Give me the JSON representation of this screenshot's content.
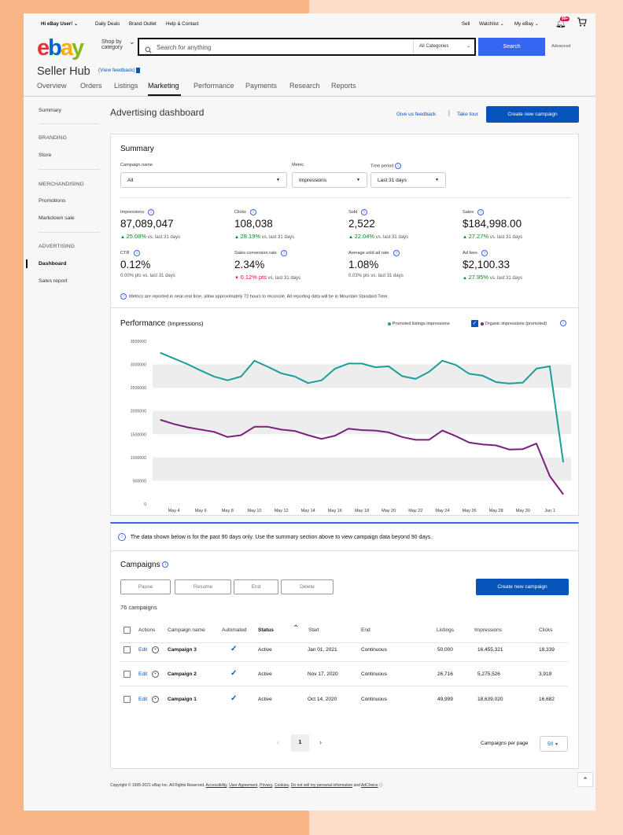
{
  "topnav": {
    "greeting": "Hi eBay User!",
    "daily_deals": "Daily Deals",
    "brand_outlet": "Brand Outlet",
    "help_contact": "Help & Contact",
    "sell": "Sell",
    "watchlist": "Watchlist",
    "my_ebay": "My eBay",
    "notification_count": "99+"
  },
  "header": {
    "logo": {
      "e": "e",
      "b": "b",
      "a": "a",
      "y": "y"
    },
    "shop_by_line1": "Shop by",
    "shop_by_line2": "category",
    "search_placeholder": "Search for anything",
    "category_select": "All Categories",
    "search_button": "Search",
    "advanced": "Advanced"
  },
  "seller_hub": {
    "title": "Seller Hub",
    "view_feedback": "(View feedback)",
    "tabs": [
      "Overview",
      "Orders",
      "Listings",
      "Marketing",
      "Performance",
      "Payments",
      "Research",
      "Reports"
    ],
    "active_tab": "Marketing"
  },
  "sidebar": {
    "summary": "Summary",
    "branding": "BRANDING",
    "store": "Store",
    "merchandising": "MERCHANDISING",
    "promotions": "Promotions",
    "markdown_sale": "Markdown sale",
    "advertising": "ADVERTISING",
    "dashboard": "Dashboard",
    "sales_report": "Sales report"
  },
  "dashboard": {
    "title": "Advertising dashboard",
    "give_feedback": "Give us feedback",
    "separator": "|",
    "take_tour": "Take tour",
    "create_campaign": "Create new campaign"
  },
  "summary": {
    "title": "Summary",
    "campaign_name_label": "Campaign name",
    "campaign_name_value": "All",
    "metric_label": "Metric",
    "metric_value": "Impressions",
    "time_period_label": "Time period",
    "time_period_value": "Last 31 days",
    "vs_text": "vs. last 31 days",
    "metrics": [
      {
        "label": "Impressions",
        "value": "87,089,047",
        "change": "25.08%",
        "dir": "up",
        "suffix": "vs. last 31 days"
      },
      {
        "label": "Clicks",
        "value": "108,038",
        "change": "28.19%",
        "dir": "up",
        "suffix": "vs. last 31 days"
      },
      {
        "label": "Sold",
        "value": "2,522",
        "change": "22.04%",
        "dir": "up",
        "suffix": "vs. last 31 days"
      },
      {
        "label": "Sales",
        "value": "$184,998.00",
        "change": "27.27%",
        "dir": "up",
        "suffix": "vs. last 31 days"
      },
      {
        "label": "CTR",
        "value": "0.12%",
        "change": "0.00% pts vs. last 31 days",
        "dir": "none",
        "suffix": ""
      },
      {
        "label": "Sales conversion rate",
        "value": "2.34%",
        "change": "0.12% pts",
        "dir": "down",
        "suffix": "vs. last 31 days"
      },
      {
        "label": "Average sold ad rate",
        "value": "1.08%",
        "change": "0.03% pts vs. last 31 days",
        "dir": "none",
        "suffix": ""
      },
      {
        "label": "Ad fees",
        "value": "$2,100.33",
        "change": "27.95%",
        "dir": "up",
        "suffix": "vs. last 31 days"
      }
    ],
    "note": "Metrics are reported in near-real time, allow approximately 72 hours to reconcile. All reporting data will be in Mountain Standard Time."
  },
  "performance": {
    "title": "Performance",
    "subtitle": "(Impressions)",
    "legend_promoted": "Promoted listings impressions",
    "legend_organic": "Organic impressions (promoted)"
  },
  "chart_data": {
    "type": "line",
    "title": "Performance (Impressions)",
    "ylim": [
      0,
      3500000
    ],
    "yticks": [
      "3500000",
      "3000000",
      "2500000",
      "2000000",
      "1500000",
      "1000000",
      "500000",
      "0"
    ],
    "x_tick_labels": [
      "May 4",
      "May 6",
      "May 8",
      "May 10",
      "May 12",
      "May 14",
      "May 16",
      "May 18",
      "May 20",
      "May 22",
      "May 24",
      "May 26",
      "May 28",
      "May 30",
      "Jun 1"
    ],
    "x": [
      "May 3",
      "May 4",
      "May 5",
      "May 6",
      "May 7",
      "May 8",
      "May 9",
      "May 10",
      "May 11",
      "May 12",
      "May 13",
      "May 14",
      "May 15",
      "May 16",
      "May 17",
      "May 18",
      "May 19",
      "May 20",
      "May 21",
      "May 22",
      "May 23",
      "May 24",
      "May 25",
      "May 26",
      "May 27",
      "May 28",
      "May 29",
      "May 30",
      "May 31",
      "Jun 1",
      "Jun 2"
    ],
    "grid": true,
    "legend": "top-right",
    "series": [
      {
        "name": "Promoted listings impressions",
        "color": "#1a9e9a",
        "values": [
          3250000,
          3130000,
          3010000,
          2870000,
          2740000,
          2660000,
          2740000,
          3080000,
          2950000,
          2810000,
          2740000,
          2600000,
          2660000,
          2910000,
          3020000,
          3020000,
          2940000,
          2960000,
          2750000,
          2690000,
          2840000,
          3080000,
          2990000,
          2800000,
          2760000,
          2620000,
          2590000,
          2610000,
          2910000,
          2960000,
          900000
        ]
      },
      {
        "name": "Organic impressions (promoted)",
        "color": "#7d1e7e",
        "values": [
          1810000,
          1720000,
          1650000,
          1600000,
          1550000,
          1440000,
          1480000,
          1660000,
          1660000,
          1600000,
          1570000,
          1480000,
          1400000,
          1470000,
          1620000,
          1590000,
          1580000,
          1540000,
          1440000,
          1380000,
          1380000,
          1580000,
          1460000,
          1320000,
          1280000,
          1260000,
          1170000,
          1180000,
          1300000,
          600000,
          210000
        ]
      }
    ]
  },
  "campaigns_notice": "The data shown below is for the past 90 days only. Use the summary section above to view campaign data beyond 90 days.",
  "campaigns": {
    "title": "Campaigns",
    "actions": {
      "pause": "Pause",
      "resume": "Resume",
      "end": "End",
      "delete": "Delete"
    },
    "create_button": "Create new campaign",
    "count": "76 campaigns",
    "columns": {
      "actions": "Actions",
      "campaign_name": "Campaign name",
      "automated": "Automated",
      "status": "Status",
      "start": "Start",
      "end": "End",
      "listings": "Listings",
      "impressions": "Impressions",
      "clicks": "Clicks"
    },
    "edit_label": "Edit",
    "rows": [
      {
        "name": "Campaign 3",
        "status": "Active",
        "start": "Jan 01, 2021",
        "end": "Continuous",
        "listings": "50,000",
        "impressions": "16,455,321",
        "clicks": "18,339"
      },
      {
        "name": "Campaign 2",
        "status": "Active",
        "start": "Nov 17, 2020",
        "end": "Continuous",
        "listings": "26,716",
        "impressions": "5,275,526",
        "clicks": "3,919"
      },
      {
        "name": "Campaign 1",
        "status": "Active",
        "start": "Oct 14, 2020",
        "end": "Continuous",
        "listings": "49,999",
        "impressions": "18,639,020",
        "clicks": "16,682"
      }
    ],
    "current_page": "1",
    "per_page_label": "Campaigns per page",
    "per_page_value": "50"
  },
  "footer": {
    "copyright": "Copyright © 1995-2021 eBay Inc. All Rights Reserved.",
    "links": [
      "Accessibility",
      "User Agreement",
      "Privacy",
      "Cookies",
      "Do not sell my personal information"
    ],
    "and": "and",
    "adchoice": "AdChoice"
  }
}
